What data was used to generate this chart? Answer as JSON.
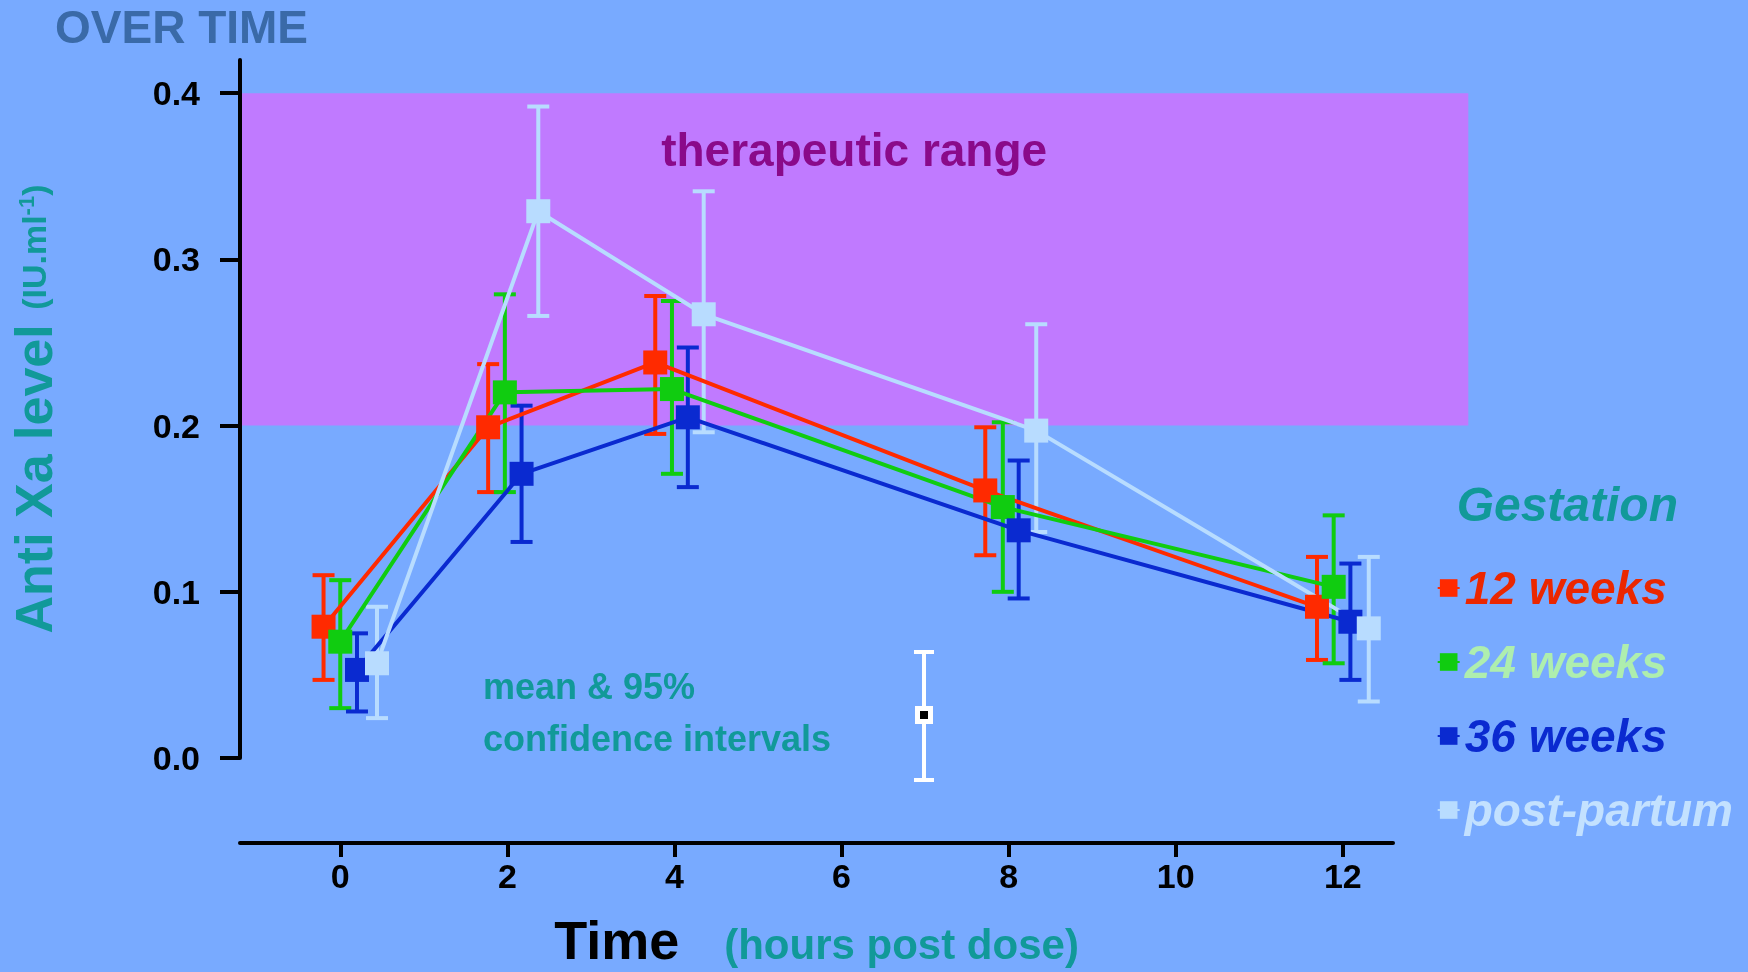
{
  "chart_data": {
    "type": "line",
    "title": "OVER TIME",
    "xlabel": "Time (hours post dose)",
    "ylabel": "Anti Xa level (IU.ml$^{-1}$)",
    "legend_title": "Gestation",
    "legend": "right",
    "marker": "square",
    "line_style": "solid",
    "grid": false,
    "xlim": [
      -1.2,
      12.6
    ],
    "xticks": [
      0,
      2,
      4,
      6,
      8,
      10,
      12
    ],
    "ylim": [
      0,
      0.42
    ],
    "yticks": [
      {
        "value": 0,
        "label": "0.0"
      },
      0.1,
      0.2,
      0.3,
      0.4
    ],
    "series": [
      {
        "name": "12 weeks",
        "color": "#ff2a00",
        "x": [
          -0.2,
          1.77,
          3.77,
          7.72,
          11.69
        ],
        "values": [
          0.079,
          0.199,
          0.238,
          0.161,
          0.091
        ],
        "errors": [
          [
            0.047,
            0.11
          ],
          [
            0.16,
            0.237
          ],
          [
            0.195,
            0.278
          ],
          [
            0.122,
            0.199
          ],
          [
            0.059,
            0.121
          ]
        ]
      },
      {
        "name": "24 weeks",
        "color": "#10cc10",
        "x": [
          0,
          1.97,
          3.97,
          7.93,
          11.89
        ],
        "values": [
          0.07,
          0.22,
          0.222,
          0.151,
          0.103
        ],
        "errors": [
          [
            0.03,
            0.107
          ],
          [
            0.16,
            0.279
          ],
          [
            0.171,
            0.275
          ],
          [
            0.1,
            0.202
          ],
          [
            0.057,
            0.146
          ]
        ]
      },
      {
        "name": "36 weeks",
        "color": "#0a2ad0",
        "x": [
          0.2,
          2.17,
          4.16,
          8.12,
          12.09
        ],
        "values": [
          0.053,
          0.171,
          0.205,
          0.137,
          0.082
        ],
        "errors": [
          [
            0.028,
            0.075
          ],
          [
            0.13,
            0.212
          ],
          [
            0.163,
            0.247
          ],
          [
            0.096,
            0.179
          ],
          [
            0.047,
            0.117
          ]
        ]
      },
      {
        "name": "post-partum",
        "color": "#b8dcff",
        "x": [
          0.44,
          2.37,
          4.35,
          8.33,
          12.31
        ],
        "values": [
          0.057,
          0.329,
          0.267,
          0.197,
          0.078
        ],
        "errors": [
          [
            0.024,
            0.091
          ],
          [
            0.266,
            0.392
          ],
          [
            0.196,
            0.341
          ],
          [
            0.136,
            0.261
          ],
          [
            0.034,
            0.121
          ]
        ]
      }
    ],
    "bands": [
      {
        "axis": "y",
        "from": 0.2,
        "to": 0.4,
        "label": "therapeutic range",
        "color": "#c07aff"
      }
    ],
    "annotations": [
      "mean & 95%\nconfidence intervals"
    ]
  }
}
